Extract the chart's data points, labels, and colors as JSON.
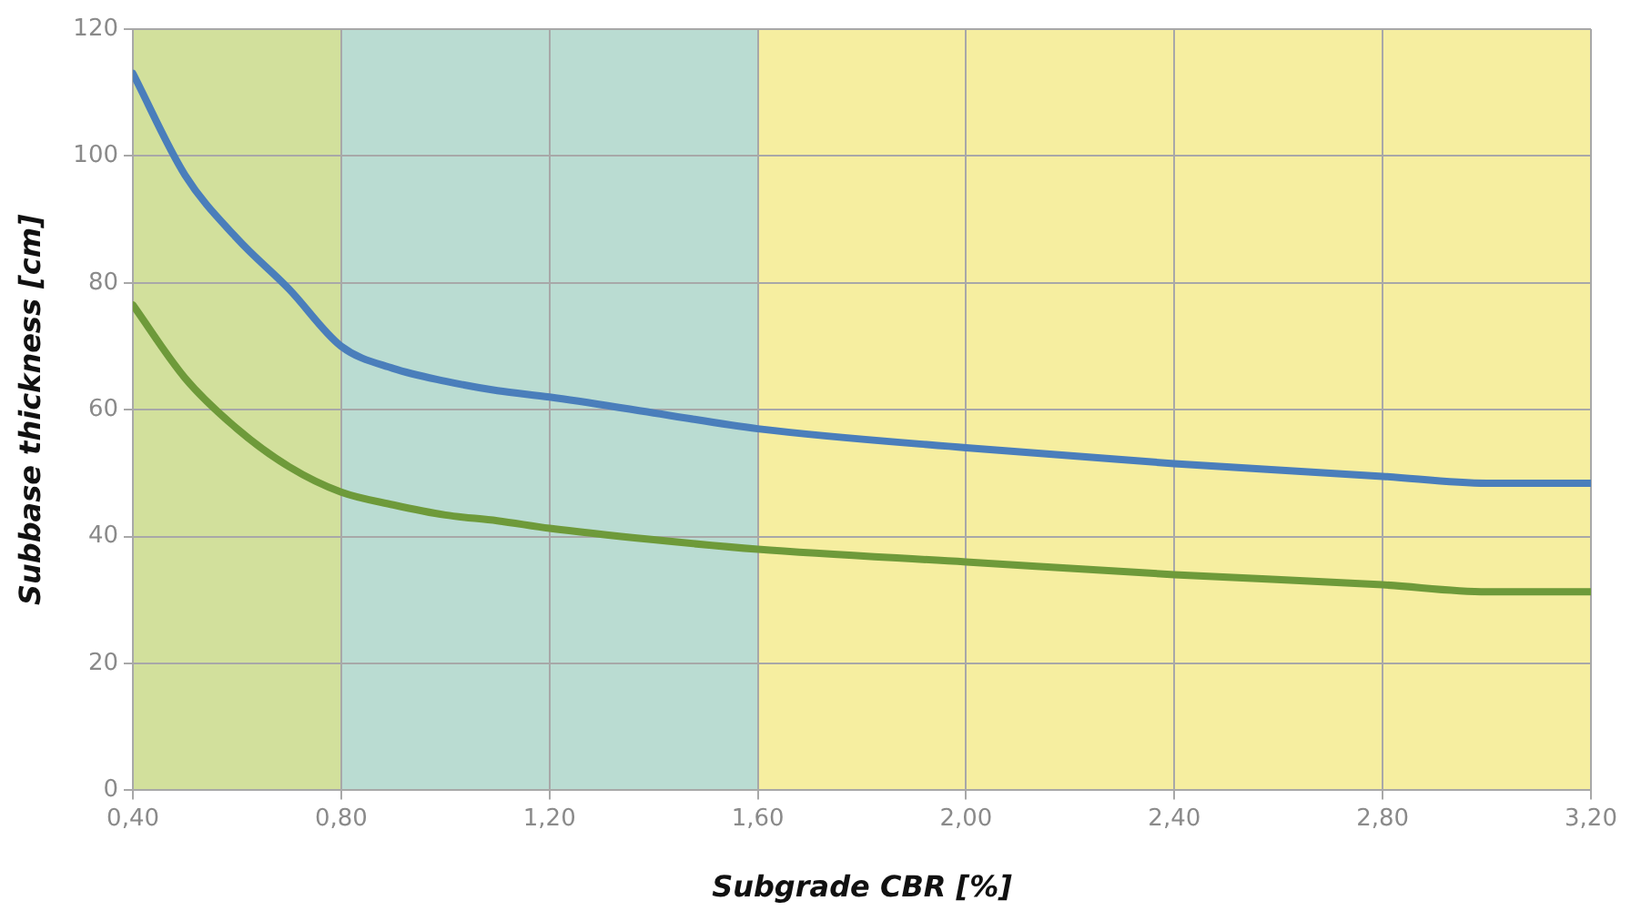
{
  "chart_data": {
    "type": "line",
    "xlabel": "Subgrade CBR [%]",
    "ylabel": "Subbase thickness [cm]",
    "x": [
      0.4,
      0.5,
      0.6,
      0.7,
      0.8,
      0.9,
      1.0,
      1.1,
      1.2,
      1.4,
      1.6,
      2.0,
      2.4,
      2.8,
      3.0,
      3.2
    ],
    "series": [
      {
        "color": "#4a7ebb",
        "values": [
          113,
          97,
          87,
          79,
          70,
          66.5,
          64.5,
          63,
          62,
          59.5,
          57,
          54,
          51.5,
          49.5,
          48.4,
          48.4
        ]
      },
      {
        "color": "#6e9a3a",
        "values": [
          76.5,
          65,
          57,
          51,
          47,
          45,
          43.4,
          42.5,
          41.3,
          39.5,
          38,
          36,
          34,
          32.4,
          31.3,
          31.3
        ]
      }
    ],
    "xlim": [
      0.4,
      3.2
    ],
    "xticks": [
      {
        "value": 0.4,
        "label": "0,40"
      },
      {
        "value": 0.8,
        "label": "0,80"
      },
      {
        "value": 1.2,
        "label": "1,20"
      },
      {
        "value": 1.6,
        "label": "1,60"
      },
      {
        "value": 2.0,
        "label": "2,00"
      },
      {
        "value": 2.4,
        "label": "2,40"
      },
      {
        "value": 2.8,
        "label": "2,80"
      },
      {
        "value": 3.2,
        "label": "3,20"
      }
    ],
    "ylim": [
      0,
      120
    ],
    "yticks": [
      0,
      20,
      40,
      60,
      80,
      100,
      120
    ],
    "bands": [
      {
        "axis": "x",
        "from": 0.4,
        "to": 0.8,
        "color": "#d2e09c"
      },
      {
        "axis": "x",
        "from": 0.8,
        "to": 1.6,
        "color": "#badcd2"
      },
      {
        "axis": "x",
        "from": 1.6,
        "to": 3.2,
        "color": "#f6eea0"
      }
    ],
    "grid": true,
    "legend": false,
    "marker": "none",
    "line_style": "solid"
  }
}
